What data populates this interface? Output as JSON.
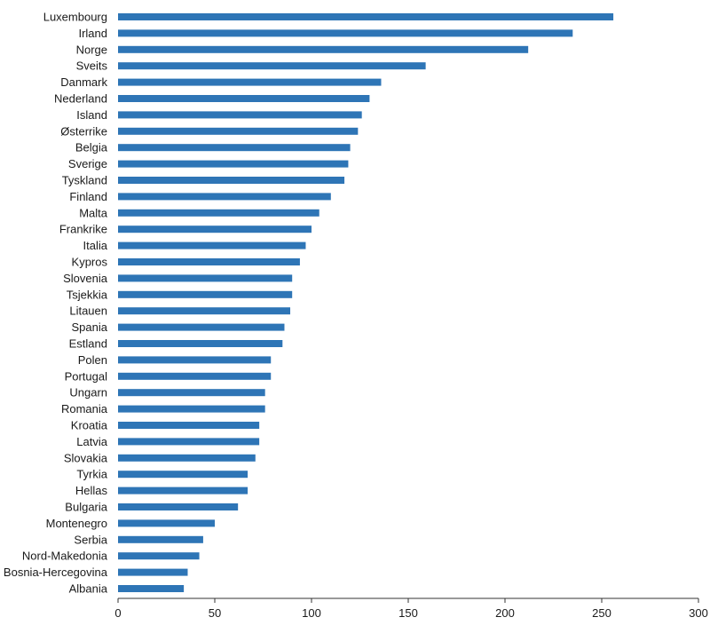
{
  "chart_data": {
    "type": "bar",
    "orientation": "horizontal",
    "title": "",
    "xlabel": "",
    "ylabel": "",
    "xlim": [
      0,
      300
    ],
    "xticks": [
      0,
      50,
      100,
      150,
      200,
      250,
      300
    ],
    "grid": false,
    "bar_color": "#2e75b6",
    "categories": [
      "Luxembourg",
      "Irland",
      "Norge",
      "Sveits",
      "Danmark",
      "Nederland",
      "Island",
      "Østerrike",
      "Belgia",
      "Sverige",
      "Tyskland",
      "Finland",
      "Malta",
      "Frankrike",
      "Italia",
      "Kypros",
      "Slovenia",
      "Tsjekkia",
      "Litauen",
      "Spania",
      "Estland",
      "Polen",
      "Portugal",
      "Ungarn",
      "Romania",
      "Kroatia",
      "Latvia",
      "Slovakia",
      "Tyrkia",
      "Hellas",
      "Bulgaria",
      "Montenegro",
      "Serbia",
      "Nord-Makedonia",
      "Bosnia-Hercegovina",
      "Albania"
    ],
    "values": [
      256,
      235,
      212,
      159,
      136,
      130,
      126,
      124,
      120,
      119,
      117,
      110,
      104,
      100,
      97,
      94,
      90,
      90,
      89,
      86,
      85,
      79,
      79,
      76,
      76,
      73,
      73,
      71,
      67,
      67,
      62,
      50,
      44,
      42,
      36,
      34
    ]
  }
}
